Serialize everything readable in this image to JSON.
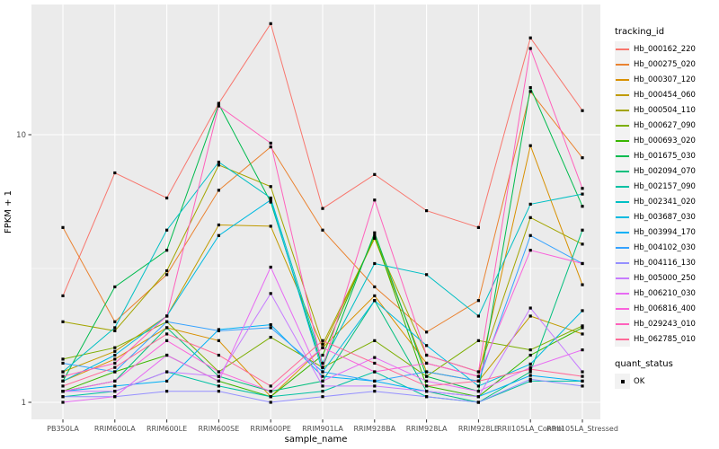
{
  "figure": {
    "y_axis_title": "FPKM + 1",
    "x_axis_title": "sample_name",
    "legend_tracking_title": "tracking_id",
    "legend_quant_title": "quant_status",
    "quant_item_label": "OK"
  },
  "colors": {
    "panel_background": "#EBEBEB",
    "gridline": "#FFFFFF",
    "legend_key_background": "#F2F2F2",
    "point": "#000000",
    "tick_text": "#4D4D4D"
  },
  "chart_data": {
    "type": "line",
    "title": "",
    "xlabel": "sample_name",
    "ylabel": "FPKM + 1",
    "y_scale": "log10",
    "ylim": [
      0.9,
      30
    ],
    "y_ticks": [
      1,
      10
    ],
    "y_minor_ticks": [
      3.162
    ],
    "grid": "major-and-minor-white-on-gray",
    "legend_position": "right",
    "point_shape": "small-black-square",
    "quant_status_legend": {
      "title": "quant_status",
      "items": [
        "OK"
      ]
    },
    "categories": [
      "PB350LA",
      "RRIM600LA",
      "RRIM600LE",
      "RRIM600SE",
      "RRIM600PE",
      "RRIM901LA",
      "RRIM928BA",
      "RRIM928LA",
      "RRIM928LE",
      "RRII105LA_Control",
      "RRII105LA_Stressed"
    ],
    "series": [
      {
        "name": "Hb_000162_220",
        "color": "#F8766D",
        "values": [
          2.5,
          7.2,
          5.8,
          13.1,
          26,
          5.3,
          7.1,
          5.2,
          4.5,
          23,
          12.3
        ]
      },
      {
        "name": "Hb_000275_020",
        "color": "#EA8331",
        "values": [
          4.5,
          2.0,
          3.0,
          6.2,
          9.0,
          4.4,
          2.7,
          1.83,
          2.4,
          14.5,
          8.2
        ]
      },
      {
        "name": "Hb_000307_120",
        "color": "#D89000",
        "values": [
          1.2,
          1.45,
          1.9,
          1.7,
          1.05,
          1.6,
          2.5,
          1.4,
          1.25,
          9.1,
          2.75
        ]
      },
      {
        "name": "Hb_000454_060",
        "color": "#C09B00",
        "values": [
          1.3,
          1.55,
          2.1,
          4.6,
          4.55,
          1.6,
          4.1,
          1.3,
          1.2,
          2.1,
          1.8
        ]
      },
      {
        "name": "Hb_000504_110",
        "color": "#A3A500",
        "values": [
          2.0,
          1.85,
          3.1,
          7.7,
          6.4,
          1.65,
          4.1,
          1.5,
          1.3,
          4.9,
          3.9
        ]
      },
      {
        "name": "Hb_000627_090",
        "color": "#7CAE00",
        "values": [
          1.45,
          1.6,
          2.0,
          1.3,
          1.75,
          1.35,
          1.7,
          1.25,
          1.7,
          1.57,
          1.93
        ]
      },
      {
        "name": "Hb_000693_020",
        "color": "#39B600",
        "values": [
          1.1,
          1.3,
          1.5,
          1.2,
          1.05,
          1.5,
          4.2,
          1.15,
          1.05,
          1.5,
          1.9
        ]
      },
      {
        "name": "Hb_001675_030",
        "color": "#00BB4E",
        "values": [
          1.2,
          2.7,
          3.7,
          13.0,
          5.6,
          1.35,
          4.3,
          1.25,
          1.1,
          15,
          5.4
        ]
      },
      {
        "name": "Hb_002094_070",
        "color": "#00BF7D",
        "values": [
          1.1,
          1.2,
          1.9,
          1.25,
          1.1,
          1.2,
          2.4,
          1.1,
          1.0,
          1.3,
          4.4
        ]
      },
      {
        "name": "Hb_002157_090",
        "color": "#00C1A3",
        "values": [
          1.05,
          1.1,
          1.3,
          1.15,
          1.05,
          1.1,
          1.3,
          1.05,
          1.0,
          1.2,
          1.2
        ]
      },
      {
        "name": "Hb_002341_020",
        "color": "#00BFC4",
        "values": [
          1.3,
          1.9,
          4.4,
          7.9,
          5.8,
          1.4,
          3.3,
          3.0,
          2.1,
          5.5,
          6.0
        ]
      },
      {
        "name": "Hb_003687_030",
        "color": "#00BAE0",
        "values": [
          1.2,
          1.5,
          2.1,
          4.2,
          5.7,
          1.3,
          2.4,
          1.63,
          1.15,
          1.39,
          2.2
        ]
      },
      {
        "name": "Hb_003994_170",
        "color": "#00B0F6",
        "values": [
          1.1,
          1.15,
          1.2,
          1.87,
          1.95,
          1.25,
          1.2,
          1.1,
          1.05,
          1.26,
          1.2
        ]
      },
      {
        "name": "Hb_004102_030",
        "color": "#35A2FF",
        "values": [
          1.4,
          1.3,
          2.0,
          1.85,
          1.9,
          1.3,
          1.2,
          1.3,
          1.2,
          4.2,
          3.3
        ]
      },
      {
        "name": "Hb_004116_130",
        "color": "#9590FF",
        "values": [
          1.05,
          1.05,
          1.1,
          1.1,
          1.0,
          1.05,
          1.1,
          1.05,
          1.0,
          1.22,
          1.15
        ]
      },
      {
        "name": "Hb_005000_250",
        "color": "#C77CFF",
        "values": [
          1.1,
          1.1,
          1.3,
          1.25,
          2.55,
          1.15,
          1.15,
          1.1,
          1.05,
          2.25,
          1.3
        ]
      },
      {
        "name": "Hb_006210_030",
        "color": "#E76BF3",
        "values": [
          1.0,
          1.05,
          1.5,
          1.2,
          3.2,
          1.2,
          1.47,
          1.2,
          1.1,
          1.35,
          1.57
        ]
      },
      {
        "name": "Hb_006816_400",
        "color": "#FA62DB",
        "values": [
          1.1,
          1.2,
          1.7,
          1.3,
          1.1,
          1.6,
          1.3,
          1.4,
          1.25,
          3.7,
          3.3
        ]
      },
      {
        "name": "Hb_029243_010",
        "color": "#FF62BC",
        "values": [
          1.25,
          1.4,
          2.1,
          12.8,
          9.3,
          1.35,
          5.7,
          1.5,
          1.3,
          21,
          6.3
        ]
      },
      {
        "name": "Hb_062785_010",
        "color": "#FF6A98",
        "values": [
          1.15,
          1.35,
          1.8,
          1.5,
          1.15,
          1.7,
          1.4,
          1.15,
          1.2,
          1.33,
          1.25
        ]
      }
    ]
  }
}
